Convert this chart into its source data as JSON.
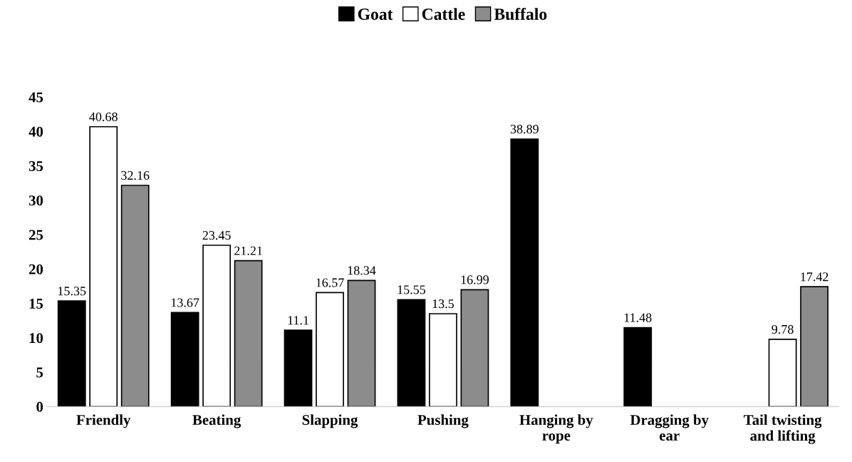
{
  "chart_data": {
    "type": "bar",
    "categories": [
      "Friendly",
      "Beating",
      "Slapping",
      "Pushing",
      "Hanging by rope",
      "Dragging by ear",
      "Tail twisting and lifting"
    ],
    "series": [
      {
        "name": "Goat",
        "color": "#000000",
        "values": [
          15.35,
          13.67,
          11.1,
          15.55,
          38.89,
          11.48,
          null
        ]
      },
      {
        "name": "Cattle",
        "color": "#ffffff",
        "values": [
          40.68,
          23.45,
          16.57,
          13.5,
          null,
          null,
          9.78
        ]
      },
      {
        "name": "Buffalo",
        "color": "#8c8c8c",
        "values": [
          32.16,
          21.21,
          18.34,
          16.99,
          null,
          null,
          17.42
        ]
      }
    ],
    "ylim": [
      0,
      45
    ],
    "yticks": [
      0,
      5,
      10,
      15,
      20,
      25,
      30,
      35,
      40,
      45
    ],
    "data_labels": true,
    "legend": "top",
    "grid": false
  }
}
